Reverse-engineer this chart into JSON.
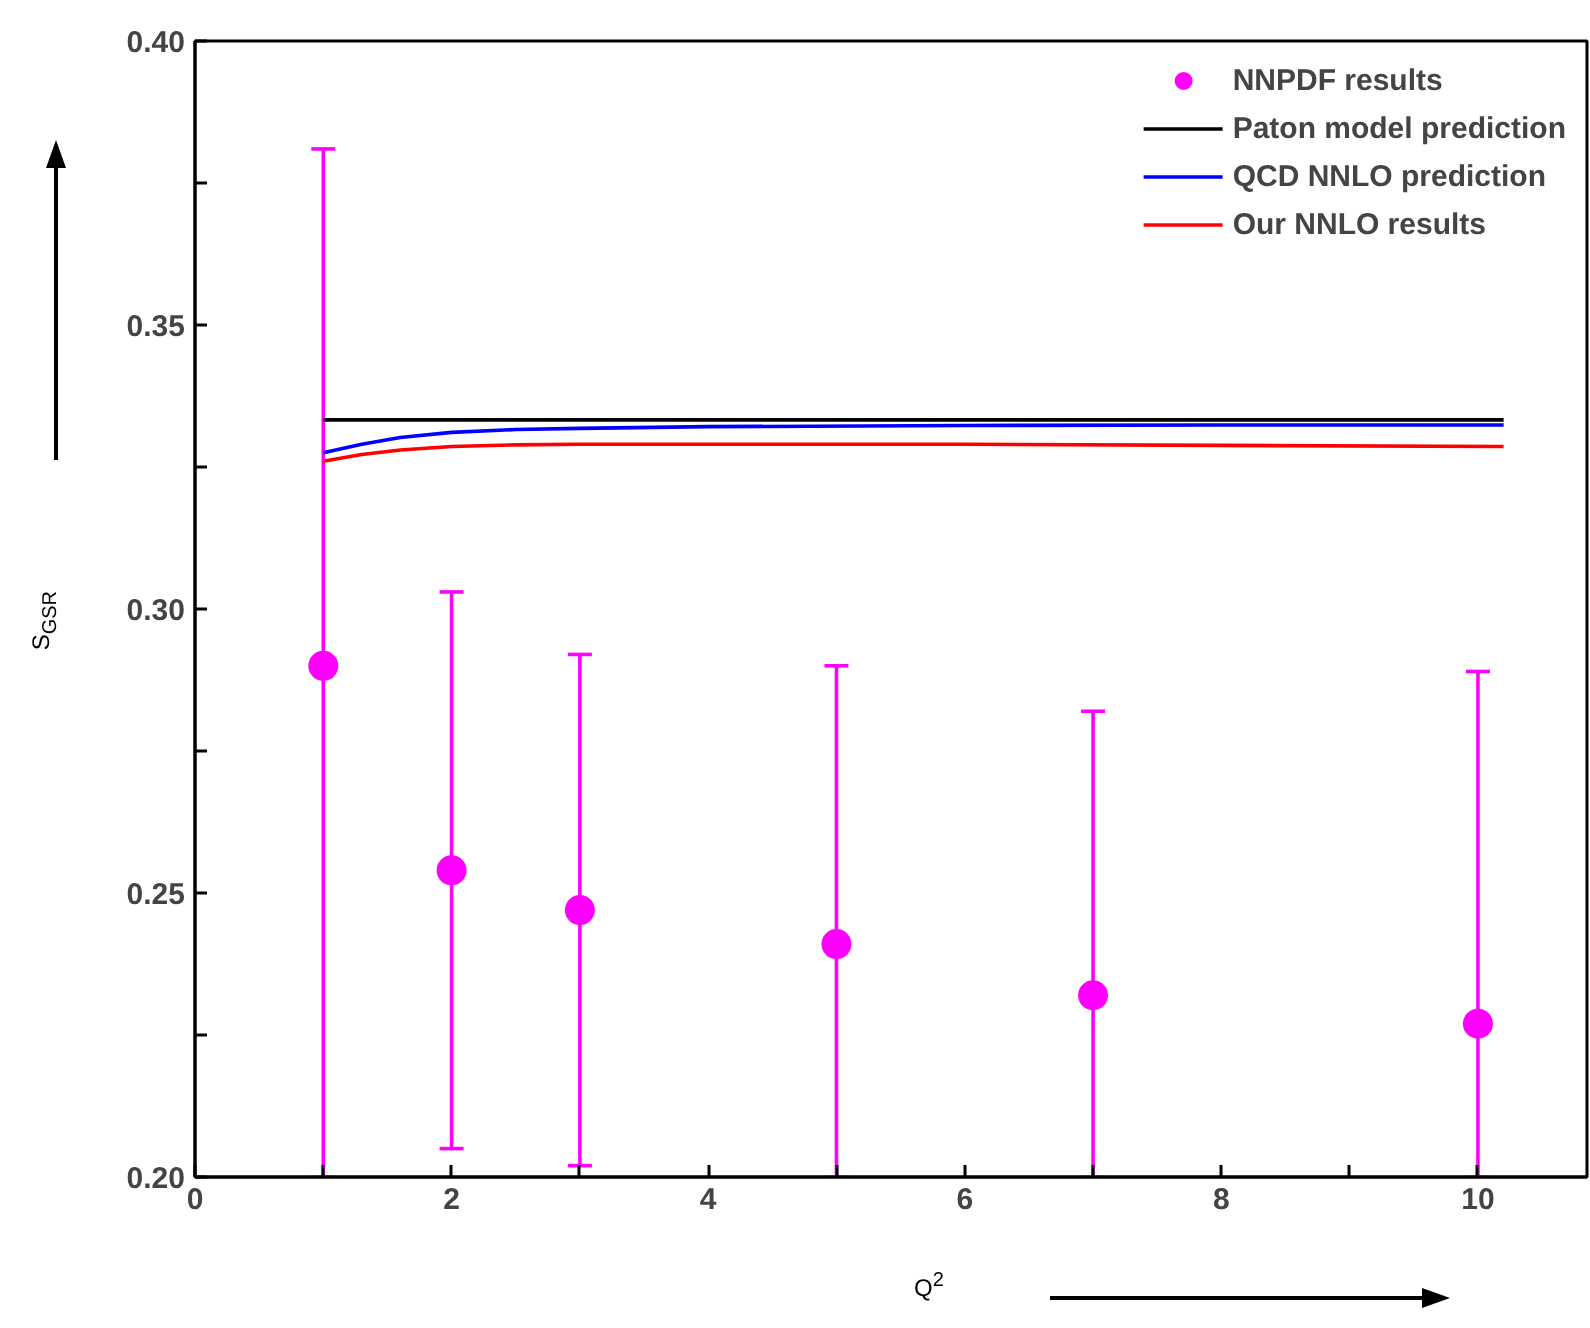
{
  "chart_data": {
    "type": "line",
    "xlabel": "Q$^{2}$",
    "ylabel": "S$_{GSR}$",
    "xlim": [
      0,
      10.85
    ],
    "ylim": [
      0.2,
      0.4
    ],
    "xticks": [
      0,
      {
        "value": 1,
        "label": null
      },
      2,
      {
        "value": 3,
        "label": null
      },
      4,
      {
        "value": 5,
        "label": null
      },
      6,
      {
        "value": 7,
        "label": null
      },
      8,
      {
        "value": 9,
        "label": null
      },
      10
    ],
    "yticks": [
      {
        "value": 0.2,
        "label": "0.20"
      },
      {
        "value": 0.225,
        "label": null
      },
      {
        "value": 0.25,
        "label": "0.25"
      },
      {
        "value": 0.275,
        "label": null
      },
      {
        "value": 0.3,
        "label": "0.30"
      },
      {
        "value": 0.325,
        "label": null
      },
      {
        "value": 0.35,
        "label": "0.35"
      },
      {
        "value": 0.375,
        "label": null
      },
      {
        "value": 0.4,
        "label": "0.40"
      }
    ],
    "grid": false,
    "legend": "top right",
    "series": [
      {
        "name": "NNPDF results",
        "type": "scatter",
        "marker": "circle",
        "color": "#ff00ff",
        "x": [
          1,
          2,
          3,
          5,
          7,
          10
        ],
        "values": [
          0.29,
          0.254,
          0.247,
          0.241,
          0.232,
          0.227
        ],
        "errors": [
          [
            0.2,
            0.381
          ],
          [
            0.205,
            0.303
          ],
          [
            0.202,
            0.292
          ],
          [
            0.2,
            0.29
          ],
          [
            0.2,
            0.282
          ],
          [
            0.2,
            0.289
          ]
        ]
      },
      {
        "name": "Paton model prediction",
        "color": "#000000",
        "x": [
          1,
          10.2
        ],
        "values": [
          0.3333,
          0.3333
        ]
      },
      {
        "name": "QCD NNLO prediction",
        "color": "#0000ff",
        "x": [
          1,
          1.3,
          1.6,
          2,
          2.5,
          3,
          4,
          6,
          8,
          10.2
        ],
        "values": [
          0.3275,
          0.329,
          0.3302,
          0.3311,
          0.3316,
          0.3318,
          0.3321,
          0.3323,
          0.3324,
          0.3324
        ]
      },
      {
        "name": "Our NNLO results",
        "color": "#ff0000",
        "x": [
          1,
          1.3,
          1.6,
          2,
          2.5,
          3,
          4,
          6,
          8,
          10.2
        ],
        "values": [
          0.326,
          0.3272,
          0.328,
          0.3286,
          0.3289,
          0.329,
          0.329,
          0.329,
          0.3288,
          0.3286
        ]
      }
    ]
  }
}
